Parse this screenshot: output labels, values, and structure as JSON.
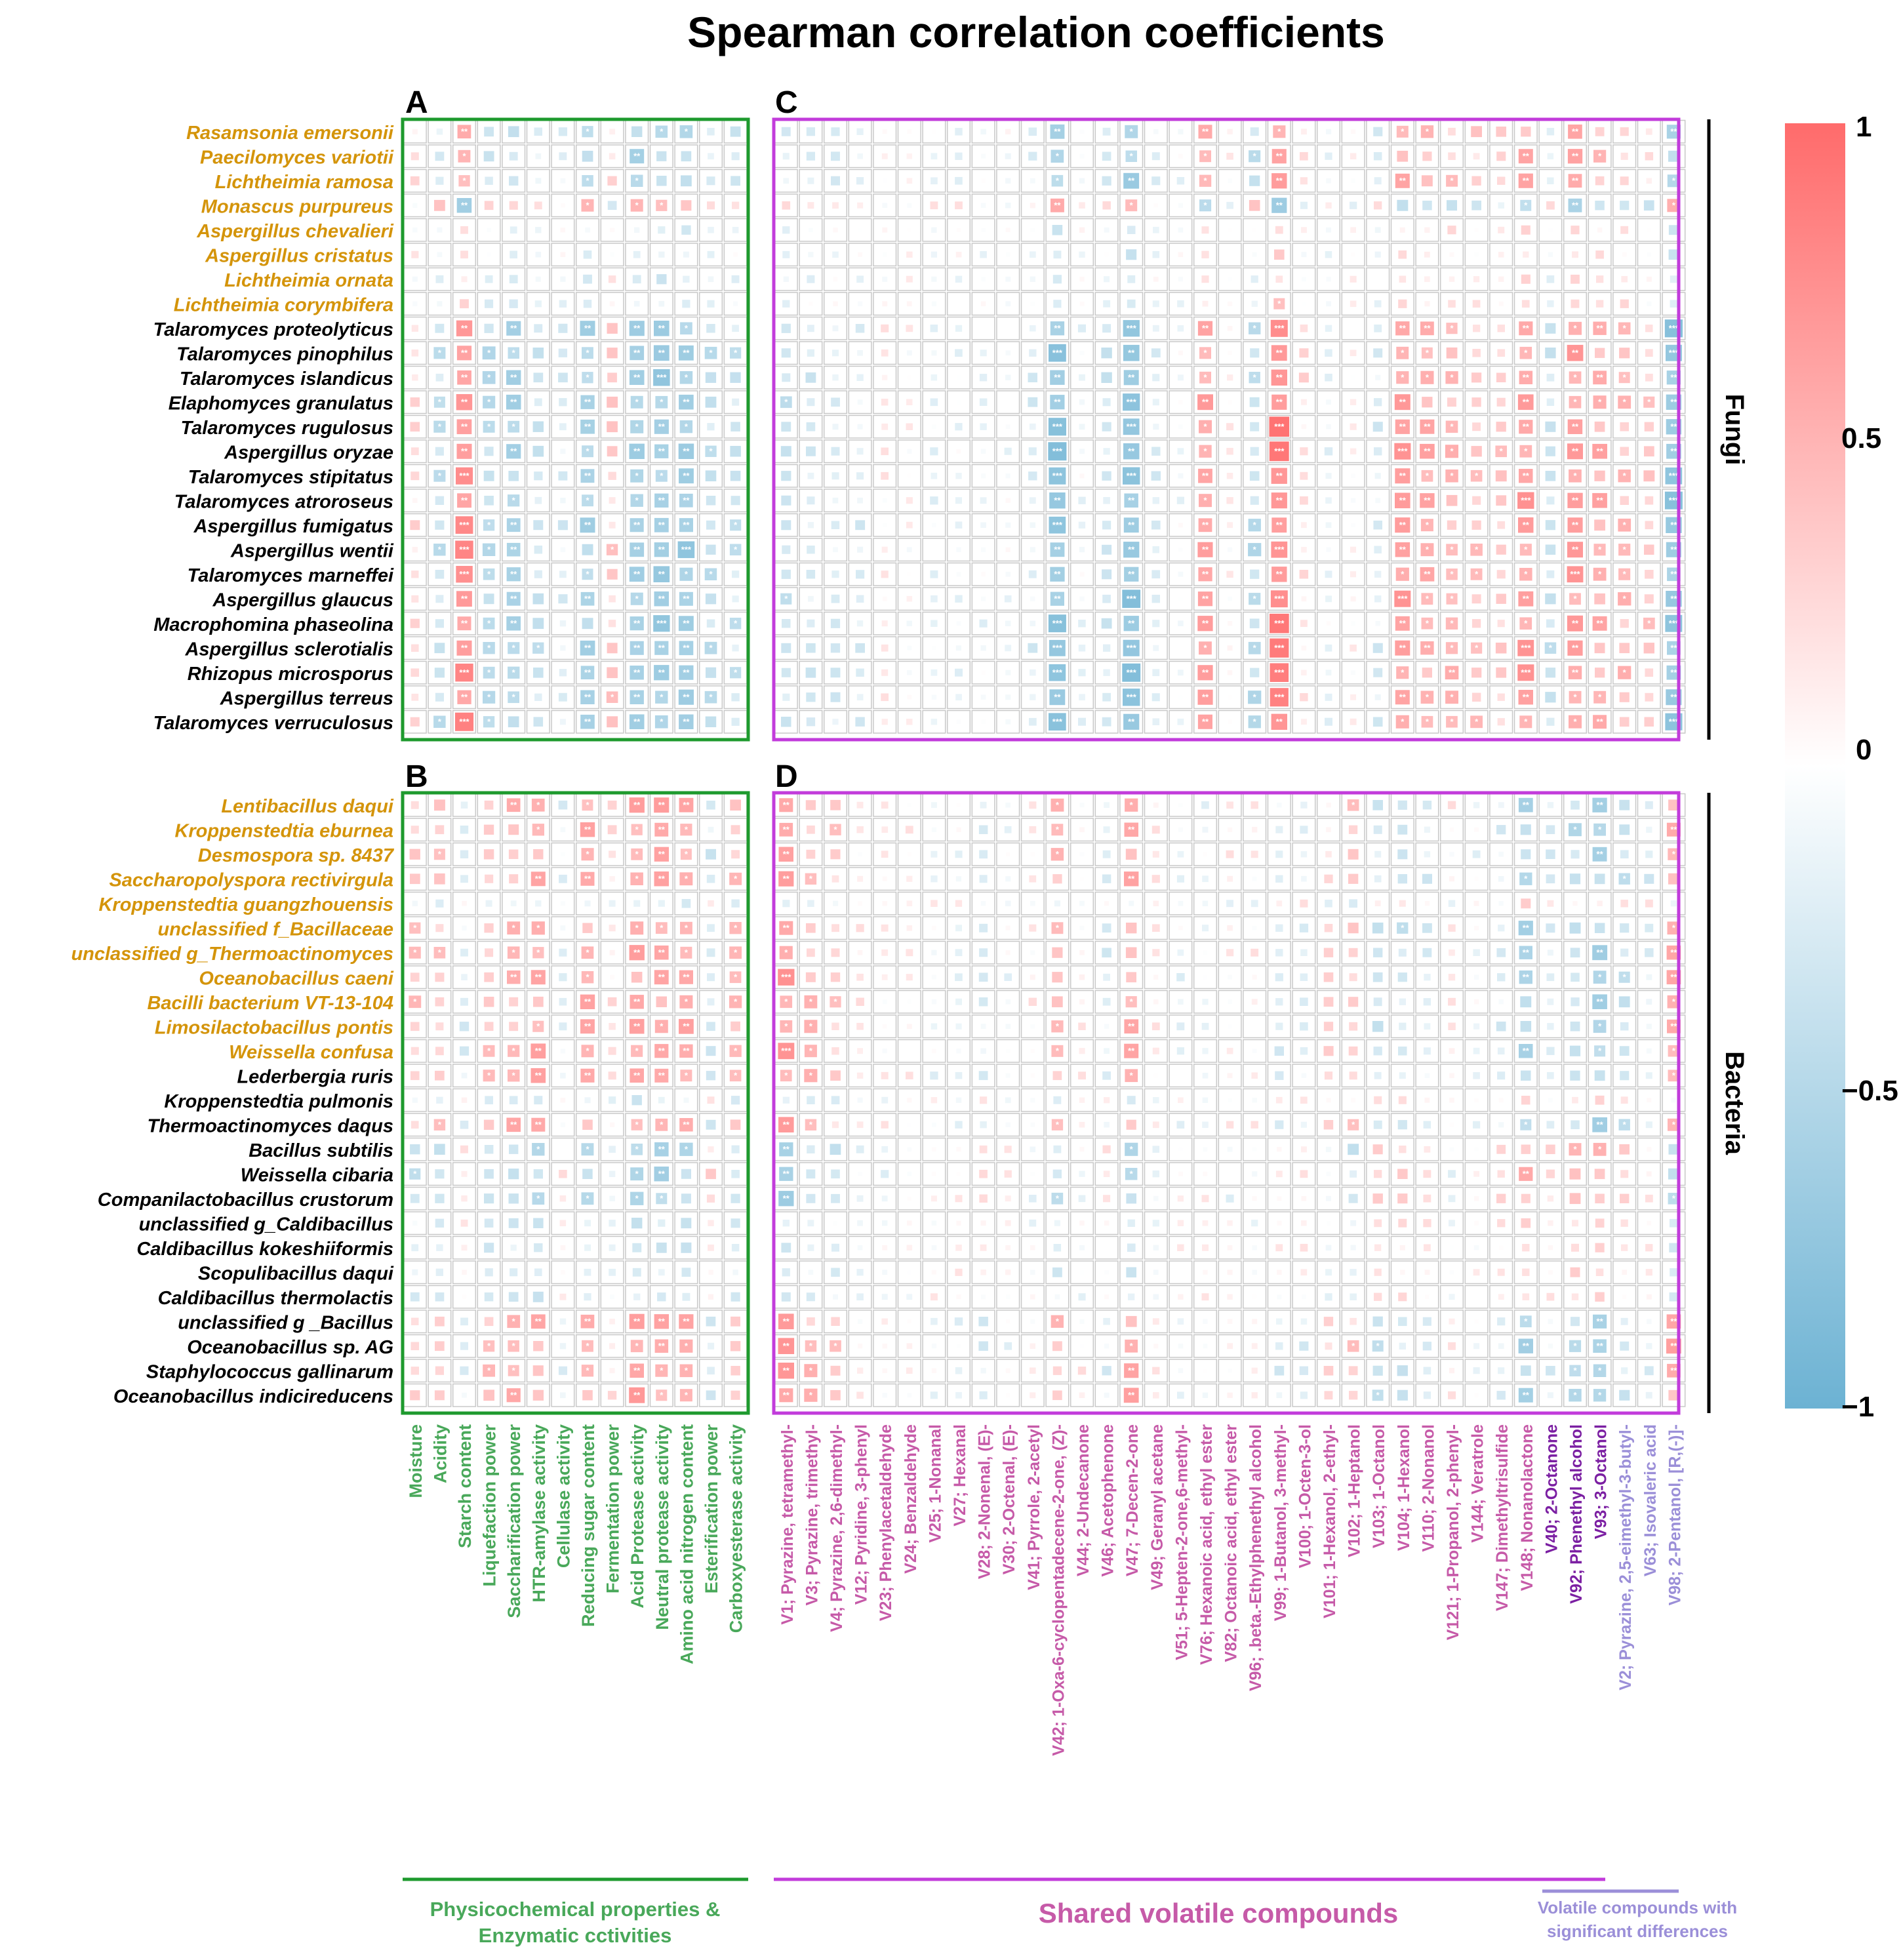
{
  "chart_data": {
    "type": "heatmap",
    "title": "Spearman correlation coefficients",
    "panels": [
      "A",
      "B",
      "C",
      "D"
    ],
    "group_labels": [
      "Fungi",
      "Bacteria"
    ],
    "fungi": [
      {
        "name": "Rasamsonia emersonii",
        "highlight": true
      },
      {
        "name": "Paecilomyces variotii",
        "highlight": true
      },
      {
        "name": "Lichtheimia ramosa",
        "highlight": true
      },
      {
        "name": "Monascus purpureus",
        "highlight": true
      },
      {
        "name": "Aspergillus chevalieri",
        "highlight": true
      },
      {
        "name": "Aspergillus cristatus",
        "highlight": true
      },
      {
        "name": "Lichtheimia ornata",
        "highlight": true
      },
      {
        "name": "Lichtheimia corymbifera",
        "highlight": true
      },
      {
        "name": "Talaromyces proteolyticus",
        "highlight": false
      },
      {
        "name": "Talaromyces pinophilus",
        "highlight": false
      },
      {
        "name": "Talaromyces islandicus",
        "highlight": false
      },
      {
        "name": "Elaphomyces granulatus",
        "highlight": false
      },
      {
        "name": "Talaromyces rugulosus",
        "highlight": false
      },
      {
        "name": "Aspergillus oryzae",
        "highlight": false
      },
      {
        "name": "Talaromyces stipitatus",
        "highlight": false
      },
      {
        "name": "Talaromyces atroroseus",
        "highlight": false
      },
      {
        "name": "Aspergillus fumigatus",
        "highlight": false
      },
      {
        "name": "Aspergillus wentii",
        "highlight": false
      },
      {
        "name": "Talaromyces marneffei",
        "highlight": false
      },
      {
        "name": "Aspergillus glaucus",
        "highlight": false
      },
      {
        "name": "Macrophomina phaseolina",
        "highlight": false
      },
      {
        "name": "Aspergillus sclerotialis",
        "highlight": false
      },
      {
        "name": "Rhizopus microsporus",
        "highlight": false
      },
      {
        "name": "Aspergillus terreus",
        "highlight": false
      },
      {
        "name": "Talaromyces verruculosus",
        "highlight": false
      }
    ],
    "bacteria": [
      {
        "name": "Lentibacillus daqui",
        "highlight": true
      },
      {
        "name": "Kroppenstedtia eburnea",
        "highlight": true
      },
      {
        "name": "Desmospora sp. 8437",
        "highlight": true
      },
      {
        "name": "Saccharopolyspora rectivirgula",
        "highlight": true
      },
      {
        "name": "Kroppenstedtia guangzhouensis",
        "highlight": true
      },
      {
        "name": "unclassified f_Bacillaceae",
        "highlight": true
      },
      {
        "name": "unclassified g_Thermoactinomyces",
        "highlight": true
      },
      {
        "name": "Oceanobacillus caeni",
        "highlight": true
      },
      {
        "name": "Bacilli bacterium VT-13-104",
        "highlight": true
      },
      {
        "name": "Limosilactobacillus pontis",
        "highlight": true
      },
      {
        "name": "Weissella confusa",
        "highlight": true
      },
      {
        "name": "Lederbergia ruris",
        "highlight": false
      },
      {
        "name": "Kroppenstedtia pulmonis",
        "highlight": false
      },
      {
        "name": "Thermoactinomyces daqus",
        "highlight": false
      },
      {
        "name": "Bacillus subtilis",
        "highlight": false
      },
      {
        "name": "Weissella cibaria",
        "highlight": false
      },
      {
        "name": "Companilactobacillus crustorum",
        "highlight": false
      },
      {
        "name": "unclassified g_Caldibacillus",
        "highlight": false
      },
      {
        "name": "Caldibacillus kokeshiiformis",
        "highlight": false
      },
      {
        "name": "Scopulibacillus daqui",
        "highlight": false
      },
      {
        "name": "Caldibacillus thermolactis",
        "highlight": false
      },
      {
        "name": "unclassified g _Bacillus",
        "highlight": false
      },
      {
        "name": "Oceanobacillus sp. AG",
        "highlight": false
      },
      {
        "name": "Staphylococcus gallinarum",
        "highlight": false
      },
      {
        "name": "Oceanobacillus indicireducens",
        "highlight": false
      }
    ],
    "physico_columns": [
      "Moisture",
      "Acidity",
      "Starch content",
      "Liquefaction power",
      "Saccharification power",
      "HTR-amylase activity",
      "Cellulase activity",
      "Reducing sugar content",
      "Fermentation power",
      "Acid Protease activity",
      "Neutral protease activity",
      "Amino acid nitrogen content",
      "Esterification power",
      "Carboxyesterase activity"
    ],
    "volatile_columns": [
      {
        "label": "V1; Pyrazine, tetramethyl-",
        "group": "shared"
      },
      {
        "label": "V3; Pyrazine, trimethyl-",
        "group": "shared"
      },
      {
        "label": "V4; Pyrazine, 2,6-dimethyl-",
        "group": "shared"
      },
      {
        "label": "V12; Pyridine, 3-phenyl",
        "group": "shared"
      },
      {
        "label": "V23; Phenylacetaldehyde",
        "group": "shared"
      },
      {
        "label": "V24; Benzaldehyde",
        "group": "shared"
      },
      {
        "label": "V25; 1-Nonanal",
        "group": "shared"
      },
      {
        "label": "V27; Hexanal",
        "group": "shared"
      },
      {
        "label": "V28; 2-Nonenal, (E)-",
        "group": "shared"
      },
      {
        "label": "V30; 2-Octenal, (E)-",
        "group": "shared"
      },
      {
        "label": "V41; Pyrrole, 2-acetyl",
        "group": "shared"
      },
      {
        "label": "V42; 1-Oxa-6-cyclopentadecene-2-one, (Z)-",
        "group": "shared"
      },
      {
        "label": "V44; 2-Undecanone",
        "group": "shared"
      },
      {
        "label": "V46; Acetophenone",
        "group": "shared"
      },
      {
        "label": "V47; 7-Decen-2-one",
        "group": "shared"
      },
      {
        "label": "V49; Geranyl acetane",
        "group": "shared"
      },
      {
        "label": "V51; 5-Hepten-2-one,6-methyl-",
        "group": "shared"
      },
      {
        "label": "V76; Hexanoic acid, ethyl ester",
        "group": "shared"
      },
      {
        "label": "V82; Octanoic acid, ethyl ester",
        "group": "shared"
      },
      {
        "label": "V96; .beta.-Ethylphenethyl alcohol",
        "group": "shared"
      },
      {
        "label": "V99; 1-Butanol, 3-methyl-",
        "group": "shared"
      },
      {
        "label": "V100; 1-Octen-3-ol",
        "group": "shared"
      },
      {
        "label": "V101; 1-Hexanol, 2-ethyl-",
        "group": "shared"
      },
      {
        "label": "V102; 1-Heptanol",
        "group": "shared"
      },
      {
        "label": "V103; 1-Octanol",
        "group": "shared"
      },
      {
        "label": "V104; 1-Hexanol",
        "group": "shared"
      },
      {
        "label": "V110; 2-Nonanol",
        "group": "shared"
      },
      {
        "label": "V121; 1-Propanol, 2-phenyl-",
        "group": "shared"
      },
      {
        "label": "V144; Veratrole",
        "group": "shared"
      },
      {
        "label": "V147; Dimethyltrisulfide",
        "group": "shared"
      },
      {
        "label": "V148; Nonanolactone",
        "group": "shared"
      },
      {
        "label": "V40; 2-Octanone",
        "group": "shared_bold"
      },
      {
        "label": "V92; Phenethyl alcohol",
        "group": "shared_bold"
      },
      {
        "label": "V93; 3-Octanol",
        "group": "shared_bold"
      },
      {
        "label": "V2; Pyrazine, 2,5-eimethyl-3-butyl-",
        "group": "different"
      },
      {
        "label": "V63; Isovaleric acid",
        "group": "different"
      },
      {
        "label": "V98; 2-Pentanol, [R,(-)]-",
        "group": "different"
      }
    ],
    "bottom_labels": {
      "physico": "Physicochemical properties & Enzymatic cctivities",
      "shared": "Shared volatile compounds",
      "different": "Volatile compounds with significant differences"
    },
    "colorbar": {
      "ticks": [
        "1",
        "0.5",
        "0",
        "−0.5",
        "−1"
      ],
      "low": "#6cb2d3",
      "mid": "#ffffff",
      "high": "#ff6b6b"
    },
    "colors": {
      "highlight_label": "#d4940a",
      "normal_label": "#000000",
      "physico_frame": "#1e9a2e",
      "volatile_frame": "#c23cdb",
      "physico_text": "#49a85a",
      "shared_text": "#c65aa8",
      "shared_bold_text": "#7b1fa2",
      "different_text": "#9b8fd8"
    },
    "panel_A_pattern": [
      0.2,
      -0.35,
      0.72,
      -0.42,
      -0.5,
      -0.3,
      -0.2,
      -0.55,
      0.3,
      -0.6,
      -0.6,
      -0.62,
      -0.35,
      -0.3
    ],
    "panel_B_pattern": [
      0.35,
      0.3,
      -0.2,
      0.4,
      0.45,
      0.5,
      -0.15,
      0.5,
      0.15,
      0.55,
      0.55,
      0.55,
      -0.25,
      0.4
    ],
    "panel_C_pattern": [
      -0.3,
      -0.25,
      -0.2,
      -0.2,
      0.1,
      0.05,
      -0.1,
      -0.1,
      -0.1,
      -0.05,
      -0.2,
      -0.7,
      -0.1,
      -0.3,
      -0.7,
      -0.2,
      -0.1,
      0.55,
      0.1,
      -0.4,
      0.8,
      0.2,
      -0.1,
      0.1,
      -0.2,
      0.6,
      0.5,
      0.45,
      0.35,
      0.3,
      0.6,
      -0.3,
      0.6,
      0.5,
      0.4,
      0.3,
      -0.7
    ],
    "panel_D_pattern": [
      0.6,
      0.4,
      0.3,
      0.1,
      0.1,
      0.1,
      -0.1,
      -0.1,
      -0.2,
      -0.1,
      0.1,
      0.4,
      0.1,
      -0.2,
      0.5,
      0.1,
      -0.1,
      -0.1,
      0.1,
      0.1,
      -0.2,
      -0.2,
      0.2,
      0.3,
      -0.3,
      -0.3,
      -0.2,
      0.1,
      -0.1,
      -0.2,
      -0.5,
      -0.2,
      -0.4,
      -0.5,
      -0.3,
      -0.2,
      0.5
    ]
  }
}
